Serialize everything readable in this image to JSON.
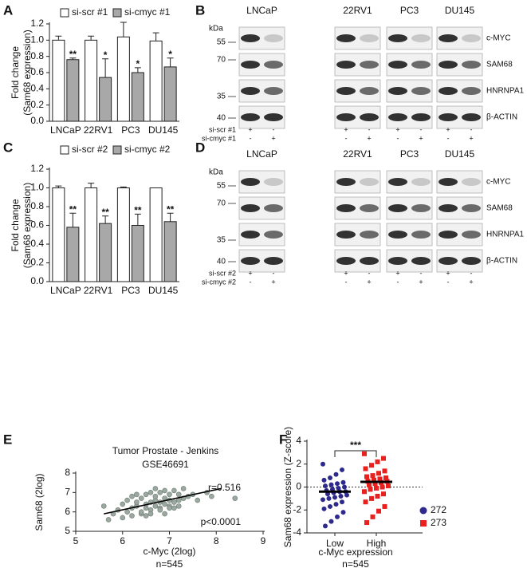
{
  "panel_labels": [
    "A",
    "B",
    "C",
    "D",
    "E",
    "F"
  ],
  "chart_data": [
    {
      "type": "bar",
      "categories": [
        "LNCaP",
        "22RV1",
        "PC3",
        "DU145"
      ],
      "ylabel": [
        "Fold change",
        "(Sam68 expression)"
      ],
      "ylim": [
        0,
        1.2
      ],
      "yticks": [
        {
          "value": 0,
          "label": "0.0"
        },
        {
          "value": 0.2,
          "label": "0.2"
        },
        {
          "value": 0.4,
          "label": "0.4"
        },
        {
          "value": 0.6,
          "label": "0.6"
        },
        {
          "value": 0.8,
          "label": "0.8"
        },
        {
          "value": 1,
          "label": "1.0"
        },
        {
          "value": 1.2,
          "label": "1.2"
        }
      ],
      "series": [
        {
          "name": "si-scr #1",
          "color": "#ffffff",
          "values": [
            1.0,
            1.0,
            1.04,
            0.99
          ],
          "errors": [
            0.05,
            0.05,
            0.18,
            0.1
          ]
        },
        {
          "name": "si-cmyc #1",
          "color": "#a8a8a8",
          "values": [
            0.76,
            0.54,
            0.6,
            0.67
          ],
          "errors": [
            0.02,
            0.23,
            0.06,
            0.11
          ],
          "annotations": [
            "**",
            "*",
            "*",
            "*"
          ]
        }
      ]
    },
    {
      "type": "bar",
      "categories": [
        "LNCaP",
        "22RV1",
        "PC3",
        "DU145"
      ],
      "ylabel": [
        "Fold change",
        "(Sam68 expression)"
      ],
      "ylim": [
        0,
        1.2
      ],
      "yticks": [
        {
          "value": 0,
          "label": "0.0"
        },
        {
          "value": 0.2,
          "label": "0.2"
        },
        {
          "value": 0.4,
          "label": "0.4"
        },
        {
          "value": 0.6,
          "label": "0.6"
        },
        {
          "value": 0.8,
          "label": "0.8"
        },
        {
          "value": 1,
          "label": "1.0"
        },
        {
          "value": 1.2,
          "label": "1.2"
        }
      ],
      "series": [
        {
          "name": "si-scr #2",
          "color": "#ffffff",
          "values": [
            1.0,
            1.0,
            1.0,
            1.0
          ],
          "errors": [
            0.02,
            0.05,
            0.01,
            0
          ]
        },
        {
          "name": "si-cmyc #2",
          "color": "#a8a8a8",
          "values": [
            0.58,
            0.62,
            0.6,
            0.64
          ],
          "errors": [
            0.15,
            0.08,
            0.12,
            0.09
          ],
          "annotations": [
            "**",
            "**",
            "**",
            "**"
          ]
        }
      ]
    },
    {
      "type": "scatter",
      "title": [
        "Tumor Prostate - Jenkins",
        "GSE46691"
      ],
      "x": [
        5.6,
        5.8,
        5.9,
        6.0,
        6.1,
        6.1,
        6.2,
        6.2,
        6.3,
        6.3,
        6.4,
        6.4,
        6.5,
        6.5,
        6.5,
        6.6,
        6.6,
        6.6,
        6.7,
        6.7,
        6.7,
        6.8,
        6.8,
        6.8,
        6.9,
        6.9,
        6.9,
        7.0,
        7.0,
        7.0,
        7.1,
        7.1,
        7.2,
        7.2,
        7.3,
        7.3,
        7.4,
        7.5,
        7.6,
        7.8,
        6.2,
        6.4,
        6.6,
        6.8,
        7.0,
        7.2,
        5.7,
        7.9,
        8.4,
        6.0,
        6.5,
        6.9,
        7.1,
        6.3,
        6.7
      ],
      "y": [
        6.3,
        5.9,
        6.1,
        6.4,
        6.0,
        6.6,
        6.2,
        6.8,
        6.3,
        6.5,
        5.9,
        6.7,
        6.2,
        6.4,
        6.9,
        6.1,
        6.5,
        7.0,
        6.3,
        6.6,
        6.8,
        6.2,
        6.5,
        7.0,
        6.4,
        6.7,
        7.1,
        6.3,
        6.6,
        6.9,
        6.5,
        7.1,
        6.6,
        6.9,
        6.7,
        7.2,
        6.8,
        6.9,
        6.6,
        7.0,
        5.8,
        6.0,
        5.9,
        6.1,
        6.2,
        6.3,
        5.6,
        6.8,
        6.7,
        5.7,
        5.8,
        5.9,
        6.2,
        6.9,
        7.2
      ],
      "color": "#9aa8a0",
      "xlim": [
        5,
        9
      ],
      "ylim": [
        5,
        8
      ],
      "xticks": [
        5,
        6,
        7,
        8,
        9
      ],
      "yticks": [
        5,
        6,
        7,
        8
      ],
      "xlabel": "c-Myc (2log)",
      "ylabel": "Sam68 (2log)",
      "fit": {
        "x": [
          5.6,
          8.1
        ],
        "y": [
          5.9,
          7.2
        ]
      },
      "annotations": [
        "r=0.516",
        "p<0.0001"
      ],
      "sample_size": "n=545"
    },
    {
      "type": "strip",
      "categories": [
        "Low",
        "High"
      ],
      "series": [
        {
          "name": "272",
          "color": "#2e2a8c",
          "marker": "circle",
          "values": [
            2.0,
            1.5,
            1.1,
            0.8,
            0.6,
            0.4,
            0.3,
            0.2,
            0.1,
            0.0,
            -0.1,
            -0.2,
            -0.3,
            -0.4,
            -0.4,
            -0.5,
            -0.6,
            -0.7,
            -0.8,
            -0.9,
            -1.0,
            -1.1,
            -1.3,
            -1.5,
            -1.7,
            -1.9,
            -2.2,
            -2.6,
            -3.0,
            -3.4
          ]
        },
        {
          "name": "273",
          "color": "#e8201e",
          "marker": "square",
          "values": [
            2.9,
            2.5,
            2.2,
            1.9,
            1.6,
            1.4,
            1.2,
            1.0,
            0.9,
            0.8,
            0.7,
            0.6,
            0.5,
            0.5,
            0.4,
            0.3,
            0.2,
            0.1,
            0.0,
            -0.1,
            -0.2,
            -0.4,
            -0.6,
            -0.8,
            -1.0,
            -1.3,
            -1.7,
            -2.1,
            -2.6,
            -3.1
          ]
        }
      ],
      "means": [
        -0.4,
        0.45
      ],
      "reference_line": 0,
      "ylim": [
        -4,
        4
      ],
      "yticks": [
        -4,
        -2,
        0,
        2,
        4
      ],
      "ylabel": "Sam68 expression (Z-score)",
      "xlabel": "c-Myc expression",
      "sample_size": "n=545",
      "significance": "***"
    }
  ],
  "blots": [
    {
      "cell_lines": [
        "LNCaP",
        "22RV1",
        "PC3",
        "DU145"
      ],
      "kda_label": "kDa",
      "markers": [
        55,
        70,
        35,
        40
      ],
      "proteins": [
        "c-MYC",
        "SAM68",
        "HNRNPA1",
        "β-ACTIN"
      ],
      "conditions": [
        {
          "name": "si-scr #1",
          "signs": [
            "+",
            "-",
            "+",
            "-",
            "+",
            "-",
            "+",
            "-"
          ]
        },
        {
          "name": "si-cmyc #1",
          "signs": [
            "-",
            "+",
            "-",
            "+",
            "-",
            "+",
            "-",
            "+"
          ]
        }
      ]
    },
    {
      "cell_lines": [
        "LNCaP",
        "22RV1",
        "PC3",
        "DU145"
      ],
      "kda_label": "kDa",
      "markers": [
        55,
        70,
        35,
        40
      ],
      "proteins": [
        "c-MYC",
        "SAM68",
        "HNRNPA1",
        "β-ACTIN"
      ],
      "conditions": [
        {
          "name": "si-scr #2",
          "signs": [
            "+",
            "-",
            "+",
            "-",
            "+",
            "-",
            "+",
            "-"
          ]
        },
        {
          "name": "si-cmyc #2",
          "signs": [
            "-",
            "+",
            "-",
            "+",
            "-",
            "+",
            "-",
            "+"
          ]
        }
      ]
    }
  ]
}
